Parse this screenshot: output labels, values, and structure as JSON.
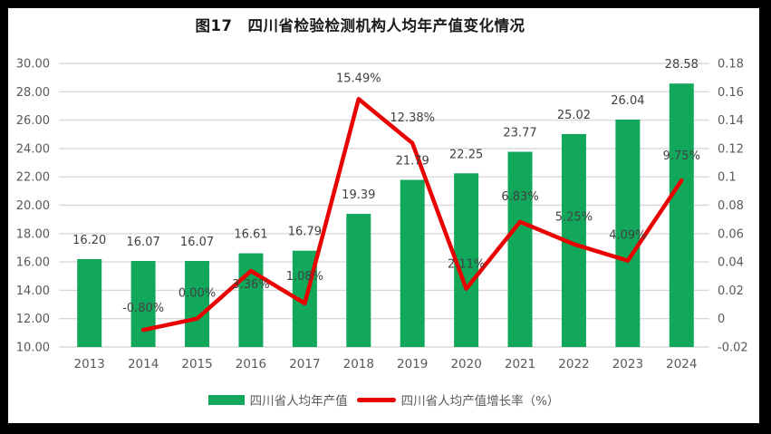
{
  "frame": {
    "background": "#000000",
    "card_background": "#FFFFFF"
  },
  "chart_data": {
    "type": "combo",
    "title": "图17　四川省检验检测机构人均年产值变化情况",
    "categories": [
      "2013",
      "2014",
      "2015",
      "2016",
      "2017",
      "2018",
      "2019",
      "2020",
      "2021",
      "2022",
      "2023",
      "2024"
    ],
    "series": [
      {
        "name": "四川省人均年产值",
        "type": "bar",
        "axis": "left",
        "color": "#11A85C",
        "values": [
          16.2,
          16.07,
          16.07,
          16.61,
          16.79,
          19.39,
          21.79,
          22.25,
          23.77,
          25.02,
          26.04,
          28.58
        ],
        "labels": [
          "16.20",
          "16.07",
          "16.07",
          "16.61",
          "16.79",
          "19.39",
          "21.79",
          "22.25",
          "23.77",
          "25.02",
          "26.04",
          "28.58"
        ]
      },
      {
        "name": "四川省人均产值增长率（%）",
        "type": "line",
        "axis": "right",
        "color": "#E90000",
        "values": [
          null,
          -0.008,
          0.0,
          0.0336,
          0.0108,
          0.1549,
          0.1238,
          0.0211,
          0.0683,
          0.0525,
          0.0409,
          0.0975
        ],
        "labels": [
          null,
          "-0.80%",
          "0.00%",
          "3.36%",
          "1.08%",
          "15.49%",
          "12.38%",
          "2.11%",
          "6.83%",
          "5.25%",
          "4.09%",
          "9.75%"
        ]
      }
    ],
    "left_axis": {
      "min": 10,
      "max": 30,
      "step": 2,
      "tick_labels": [
        "30.00",
        "28.00",
        "26.00",
        "24.00",
        "22.00",
        "20.00",
        "18.00",
        "16.00",
        "14.00",
        "12.00",
        "10.00"
      ]
    },
    "right_axis": {
      "min": -0.02,
      "max": 0.18,
      "step": 0.02,
      "tick_labels": [
        "0.18",
        "0.16",
        "0.14",
        "0.12",
        "0.1",
        "0.08",
        "0.06",
        "0.04",
        "0.02",
        "0",
        "-0.02"
      ]
    },
    "grid": true,
    "legend_position": "bottom",
    "colors": {
      "bar": "#11A85C",
      "line": "#E90000",
      "grid": "#D9D9D9",
      "axis_text": "#595959",
      "data_label": "#404040"
    }
  }
}
